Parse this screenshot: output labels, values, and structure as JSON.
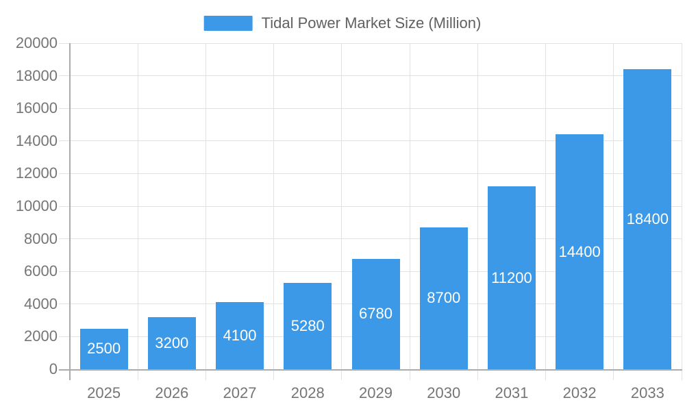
{
  "colors": {
    "bar": "#3B99E8",
    "grid": "#E2E2E2",
    "axis": "#ABABAB",
    "axis_text": "#757575",
    "title_text": "#606060",
    "bar_label_text": "#FFFFFF"
  },
  "legend": {
    "label": "Tidal Power Market Size (Million)"
  },
  "chart_data": {
    "type": "bar",
    "title": "Tidal Power Market Size (Million)",
    "categories": [
      "2025",
      "2026",
      "2027",
      "2028",
      "2029",
      "2030",
      "2031",
      "2032",
      "2033"
    ],
    "values": [
      2500,
      3200,
      4100,
      5280,
      6780,
      8700,
      11200,
      14400,
      18400
    ],
    "series": [
      {
        "name": "Tidal Power Market Size (Million)",
        "values": [
          2500,
          3200,
          4100,
          5280,
          6780,
          8700,
          11200,
          14400,
          18400
        ]
      }
    ],
    "xlabel": "",
    "ylabel": "",
    "ylim": [
      0,
      20000
    ],
    "ytick_step": 2000,
    "ytick_labels": [
      "0",
      "2000",
      "4000",
      "6000",
      "8000",
      "10000",
      "12000",
      "14000",
      "16000",
      "18000",
      "20000"
    ],
    "grid": true,
    "legend_position": "top-center",
    "value_labels": "inside-center"
  }
}
